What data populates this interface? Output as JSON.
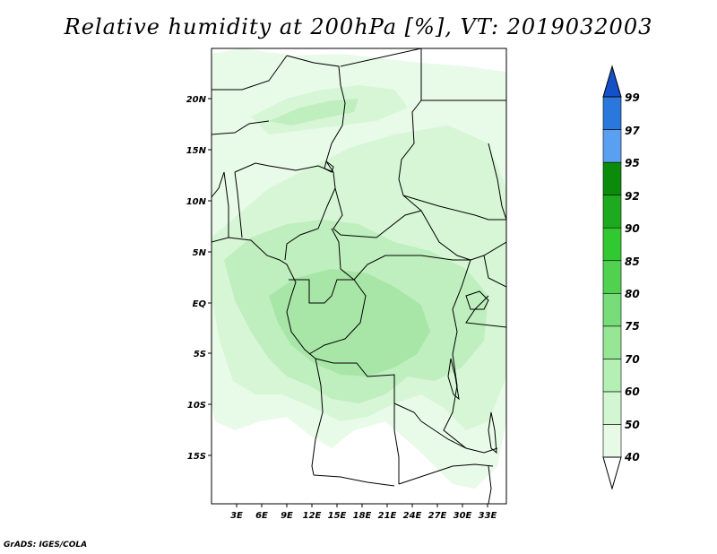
{
  "title": "Relative humidity at 200hPa [%], VT: 2019032003",
  "credit": "GrADS: IGES/COLA",
  "map": {
    "lat_labels": [
      "20N",
      "15N",
      "10N",
      "5N",
      "EQ",
      "5S",
      "10S",
      "15S"
    ],
    "lon_labels": [
      "3E",
      "6E",
      "9E",
      "12E",
      "15E",
      "18E",
      "21E",
      "24E",
      "27E",
      "30E",
      "33E"
    ]
  },
  "colorbar": {
    "levels": [
      "40",
      "50",
      "60",
      "70",
      "75",
      "80",
      "85",
      "90",
      "92",
      "95",
      "97",
      "99"
    ],
    "colors": [
      "#ffffff",
      "#e6fae6",
      "#d2f5d2",
      "#b4f0b4",
      "#96e696",
      "#78dc78",
      "#50d250",
      "#32c832",
      "#1eaa1e",
      "#0a8c0a",
      "#5aa0f0",
      "#2a78dc",
      "#1450c8"
    ]
  }
}
